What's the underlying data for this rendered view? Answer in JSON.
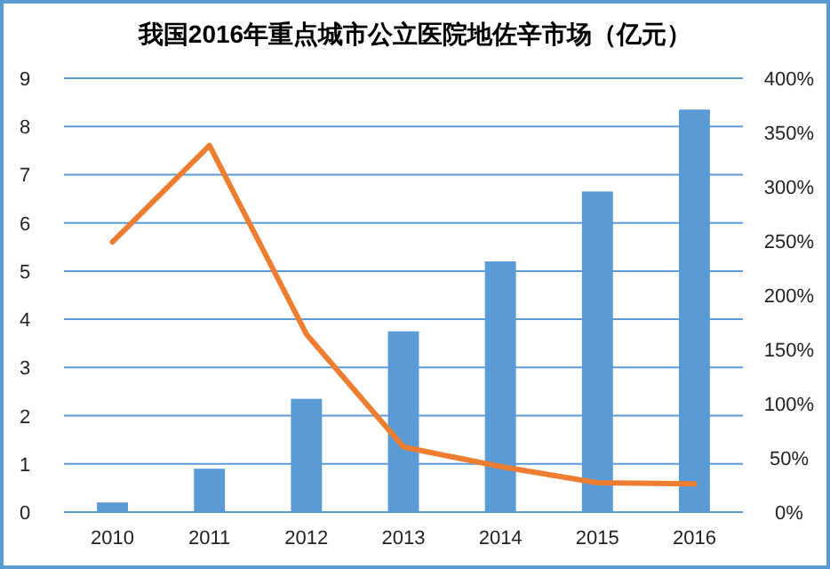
{
  "chart_data": {
    "type": "bar",
    "title": "我国2016年重点城市公立医院地佐辛市场（亿元）",
    "categories": [
      "2010",
      "2011",
      "2012",
      "2013",
      "2014",
      "2015",
      "2016"
    ],
    "series": [
      {
        "color": "#5b9bd5",
        "values": [
          0.2,
          0.9,
          2.35,
          3.75,
          5.2,
          6.65,
          8.35
        ]
      },
      {
        "type": "line",
        "axis": "y2",
        "color": "#ed7d31",
        "values": [
          249,
          338,
          164,
          60,
          42,
          27,
          26
        ]
      }
    ],
    "ylim": [
      0,
      9
    ],
    "yticks": [
      0,
      1,
      2,
      3,
      4,
      5,
      6,
      7,
      8,
      9
    ],
    "y2lim": [
      0,
      400
    ],
    "y2ticks": [
      {
        "value": 0,
        "label": "0%"
      },
      {
        "value": 50,
        "label": "50%"
      },
      {
        "value": 100,
        "label": "100%"
      },
      {
        "value": 150,
        "label": "150%"
      },
      {
        "value": 200,
        "label": "200%"
      },
      {
        "value": 250,
        "label": "250%"
      },
      {
        "value": 300,
        "label": "300%"
      },
      {
        "value": 350,
        "label": "350%"
      },
      {
        "value": 400,
        "label": "400%"
      }
    ],
    "grid": "y",
    "marker": "none",
    "line_style": "solid"
  }
}
